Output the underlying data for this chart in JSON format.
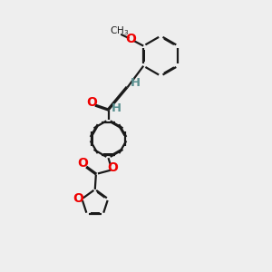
{
  "bg_color": "#eeeeee",
  "bond_color": "#1a1a1a",
  "o_color": "#ee0000",
  "h_color": "#5a9090",
  "lw": 1.6,
  "dlo": 0.045,
  "xlim": [
    0,
    10
  ],
  "ylim": [
    0,
    14
  ]
}
